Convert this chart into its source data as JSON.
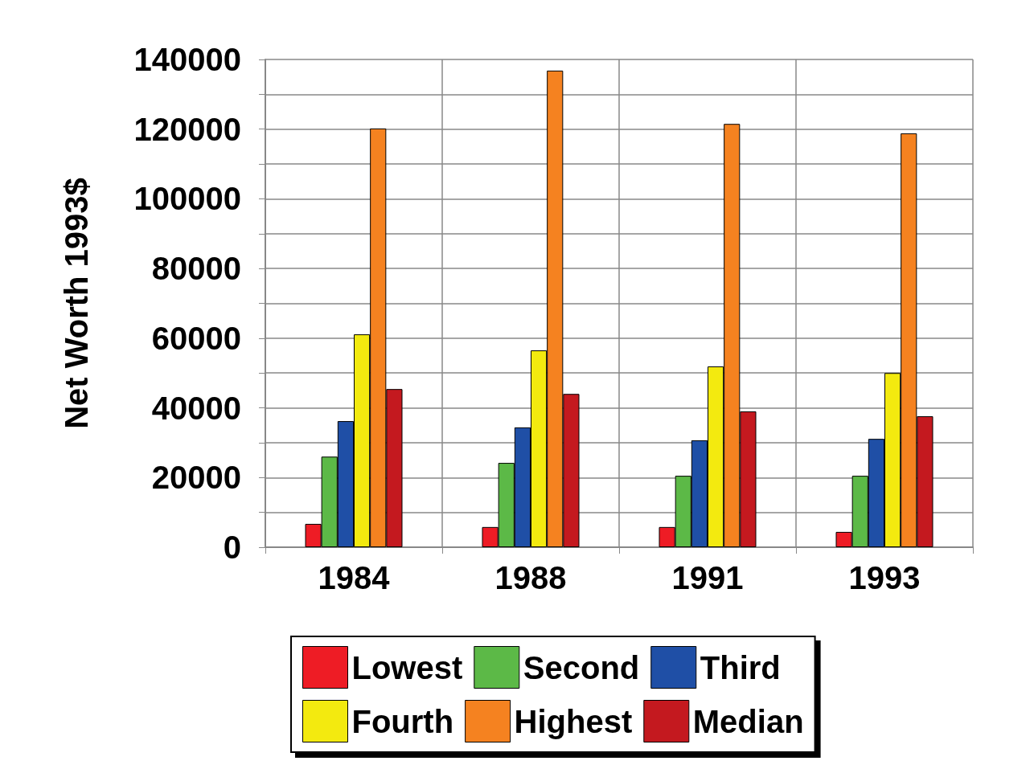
{
  "chart_data": {
    "type": "bar",
    "ylabel": "Net Worth 1993$",
    "categories": [
      "1984",
      "1988",
      "1991",
      "1993"
    ],
    "series": [
      {
        "name": "Lowest",
        "color": "#ee1c25",
        "values": [
          6700,
          5800,
          5800,
          4400
        ]
      },
      {
        "name": "Second",
        "color": "#5cb947",
        "values": [
          26000,
          24200,
          20500,
          20500
        ]
      },
      {
        "name": "Third",
        "color": "#1f4fa6",
        "values": [
          36200,
          34400,
          30700,
          31100
        ]
      },
      {
        "name": "Fourth",
        "color": "#f3ea0f",
        "values": [
          61100,
          56500,
          51900,
          50000
        ]
      },
      {
        "name": "Highest",
        "color": "#f58220",
        "values": [
          120200,
          136800,
          121500,
          118800
        ]
      },
      {
        "name": "Median",
        "color": "#c4191f",
        "values": [
          45400,
          44000,
          39000,
          37600
        ]
      }
    ],
    "ylim": [
      0,
      140000
    ],
    "yticks": [
      0,
      20000,
      40000,
      60000,
      80000,
      100000,
      120000,
      140000
    ],
    "grid": true,
    "legend": "bottom"
  }
}
